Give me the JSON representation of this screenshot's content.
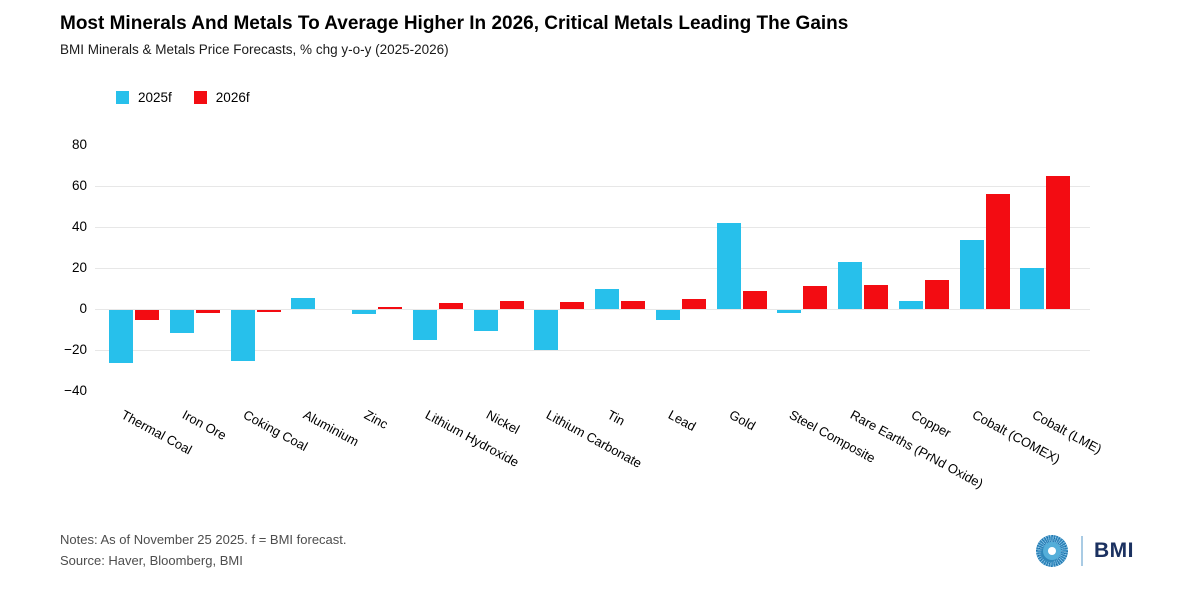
{
  "header": {
    "title": "Most Minerals And Metals To Average Higher In 2026, Critical Metals Leading The Gains",
    "subtitle": "BMI Minerals & Metals Price Forecasts, % chg y-o-y (2025-2026)"
  },
  "footer": {
    "notes": "Notes: As of November 25 2025. f = BMI forecast.",
    "source": "Source: Haver, Bloomberg, BMI",
    "brand": "BMI"
  },
  "colors": {
    "series_2025f": "#27C0EB",
    "series_2026f": "#F30C12",
    "gridline": "#e7e7e7",
    "muted_text": "#4d4d4d",
    "brand_navy": "#1b3160",
    "logo_divider": "#a9cbe4"
  },
  "chart_data": {
    "type": "bar",
    "title": "Most Minerals And Metals To Average Higher In 2026, Critical Metals Leading The Gains",
    "subtitle": "BMI Minerals & Metals Price Forecasts, % chg y-o-y (2025-2026)",
    "categories": [
      "Thermal Coal",
      "Iron Ore",
      "Coking Coal",
      "Aluminium",
      "Zinc",
      "Lithium Hydroxide",
      "Nickel",
      "Lithium Carbonate",
      "Tin",
      "Lead",
      "Gold",
      "Steel Composite",
      "Rare Earths (PrNd Oxide)",
      "Copper",
      "Cobalt (COMEX)",
      "Cobalt (LME)"
    ],
    "series": [
      {
        "name": "2025f",
        "color": "#27C0EB",
        "values": [
          -26,
          -11,
          -25,
          5.5,
          -2,
          -14.5,
          -10,
          -19.5,
          10,
          -5,
          42,
          -1.5,
          23,
          4,
          33.5,
          20
        ]
      },
      {
        "name": "2026f",
        "color": "#F30C12",
        "values": [
          -5,
          -1.5,
          -1,
          0,
          1,
          3,
          4,
          3.5,
          4,
          5,
          9,
          11,
          11.5,
          14,
          56,
          65
        ]
      }
    ],
    "ylabel": "",
    "xlabel": "",
    "ylim": [
      -40,
      80
    ],
    "yticks": [
      80,
      60,
      40,
      20,
      0,
      -20,
      -40
    ],
    "gridlines": [
      60,
      40,
      20,
      0,
      -20
    ],
    "legend_position": "top-left",
    "x_tick_rotation_deg": 28.5,
    "grid": true
  }
}
